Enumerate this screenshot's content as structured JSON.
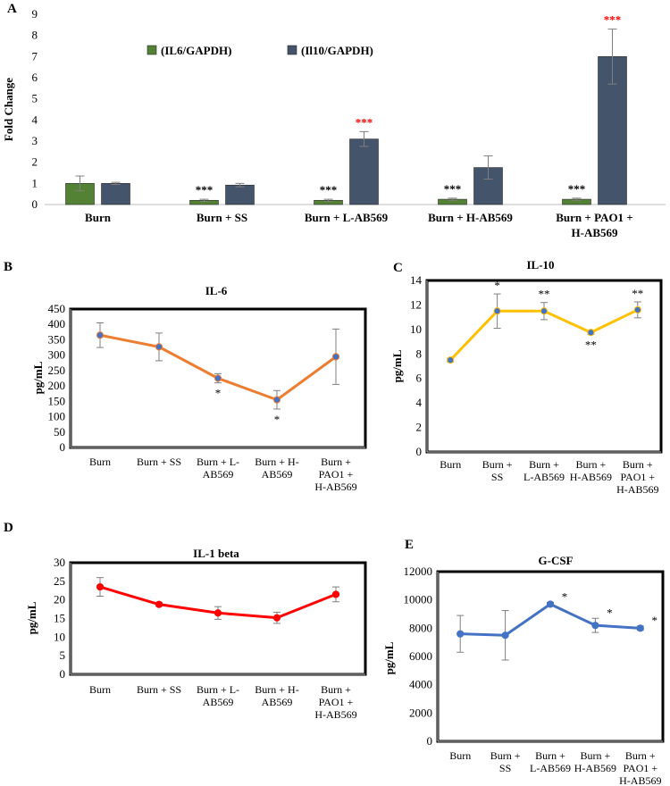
{
  "chart_data": [
    {
      "panel": "A",
      "type": "bar",
      "title": "",
      "ylabel": "Fold Change",
      "xlabel": "",
      "ylim": [
        0,
        9
      ],
      "yticks": [
        0,
        1,
        2,
        3,
        4,
        5,
        6,
        7,
        8,
        9
      ],
      "categories": [
        [
          "Burn"
        ],
        [
          "Burn + SS"
        ],
        [
          "Burn + L-AB569"
        ],
        [
          "Burn + H-AB569"
        ],
        [
          "Burn + PAO1 +",
          "H-AB569"
        ]
      ],
      "series": [
        {
          "name": "(IL6/GAPDH)",
          "color": "#548235",
          "values": [
            1.0,
            0.2,
            0.2,
            0.25,
            0.25
          ],
          "errors": [
            0.35,
            0.05,
            0.05,
            0.05,
            0.05
          ],
          "stars": [
            "",
            "***",
            "***",
            "***",
            "***"
          ],
          "star_color": "#000000"
        },
        {
          "name": "(Il10/GAPDH)",
          "color": "#44546a",
          "values": [
            1.0,
            0.92,
            3.1,
            1.75,
            7.0
          ],
          "errors": [
            0.05,
            0.08,
            0.35,
            0.55,
            1.3
          ],
          "stars": [
            "",
            "",
            "***",
            "",
            "***"
          ],
          "star_color": "#ff0000"
        }
      ],
      "legend_position": "top-left"
    },
    {
      "panel": "B",
      "type": "line",
      "title": "IL-6",
      "ylabel": "pg/mL",
      "ylim": [
        0,
        450
      ],
      "yticks": [
        0,
        50,
        100,
        150,
        200,
        250,
        300,
        350,
        400,
        450
      ],
      "categories": [
        [
          "Burn"
        ],
        [
          "Burn + SS"
        ],
        [
          "Burn + L-",
          "AB569"
        ],
        [
          "Burn + H-",
          "AB569"
        ],
        [
          "Burn +",
          "PAO1 +",
          "H-AB569"
        ]
      ],
      "line_color": "#ed7d31",
      "marker_color": "#4472c4",
      "values": [
        365,
        327,
        225,
        155,
        295
      ],
      "errors": [
        40,
        45,
        15,
        30,
        90
      ],
      "stars": [
        "",
        "",
        "*",
        "*",
        ""
      ],
      "star_position": "below"
    },
    {
      "panel": "C",
      "type": "line",
      "title": "IL-10",
      "ylabel": "pg/mL",
      "ylim": [
        0,
        14
      ],
      "yticks": [
        0,
        2,
        4,
        6,
        8,
        10,
        12,
        14
      ],
      "categories": [
        [
          "Burn"
        ],
        [
          "Burn +",
          "SS"
        ],
        [
          "Burn +",
          "L-AB569"
        ],
        [
          "Burn +",
          "H-AB569"
        ],
        [
          "Burn +",
          "PAO1 +",
          "H-AB569"
        ]
      ],
      "line_color": "#ffc000",
      "marker_color": "#4472c4",
      "values": [
        7.5,
        11.5,
        11.5,
        9.75,
        11.6
      ],
      "errors": [
        0.15,
        1.4,
        0.7,
        0.15,
        0.65
      ],
      "stars": [
        "",
        "*",
        "**",
        "**",
        "**"
      ],
      "star_position": [
        "",
        "above",
        "above",
        "below",
        "above"
      ]
    },
    {
      "panel": "D",
      "type": "line",
      "title": "IL-1  beta",
      "ylabel": "pg/mL",
      "ylim": [
        0,
        30
      ],
      "yticks": [
        0,
        5,
        10,
        15,
        20,
        25,
        30
      ],
      "categories": [
        [
          "Burn"
        ],
        [
          "Burn + SS"
        ],
        [
          "Burn + L-",
          "AB569"
        ],
        [
          "Burn + H-",
          "AB569"
        ],
        [
          "Burn +",
          "PAO1 +",
          "H-AB569"
        ]
      ],
      "line_color": "#ff0000",
      "marker_color": "#ff0000",
      "values": [
        23.5,
        18.8,
        16.5,
        15.2,
        21.5
      ],
      "errors": [
        2.5,
        0.5,
        1.7,
        1.5,
        2.0
      ],
      "stars": [
        "",
        "",
        "",
        "",
        ""
      ]
    },
    {
      "panel": "E",
      "type": "line",
      "title": "G-CSF",
      "ylabel": "pg/mL",
      "ylim": [
        0,
        12000
      ],
      "yticks": [
        0,
        2000,
        4000,
        6000,
        8000,
        10000,
        12000
      ],
      "categories": [
        [
          "Burn"
        ],
        [
          "Burn +",
          "SS"
        ],
        [
          "Burn +",
          "L-AB569"
        ],
        [
          "Burn +",
          "H-AB569"
        ],
        [
          "Burn +",
          "PAO1 +",
          "H-AB569"
        ]
      ],
      "line_color": "#4472c4",
      "marker_color": "#4472c4",
      "values": [
        7600,
        7500,
        9700,
        8200,
        8000
      ],
      "errors": [
        1300,
        1750,
        130,
        500,
        150
      ],
      "stars": [
        "",
        "",
        "*",
        "*",
        "*"
      ],
      "star_position": "above-right"
    }
  ]
}
